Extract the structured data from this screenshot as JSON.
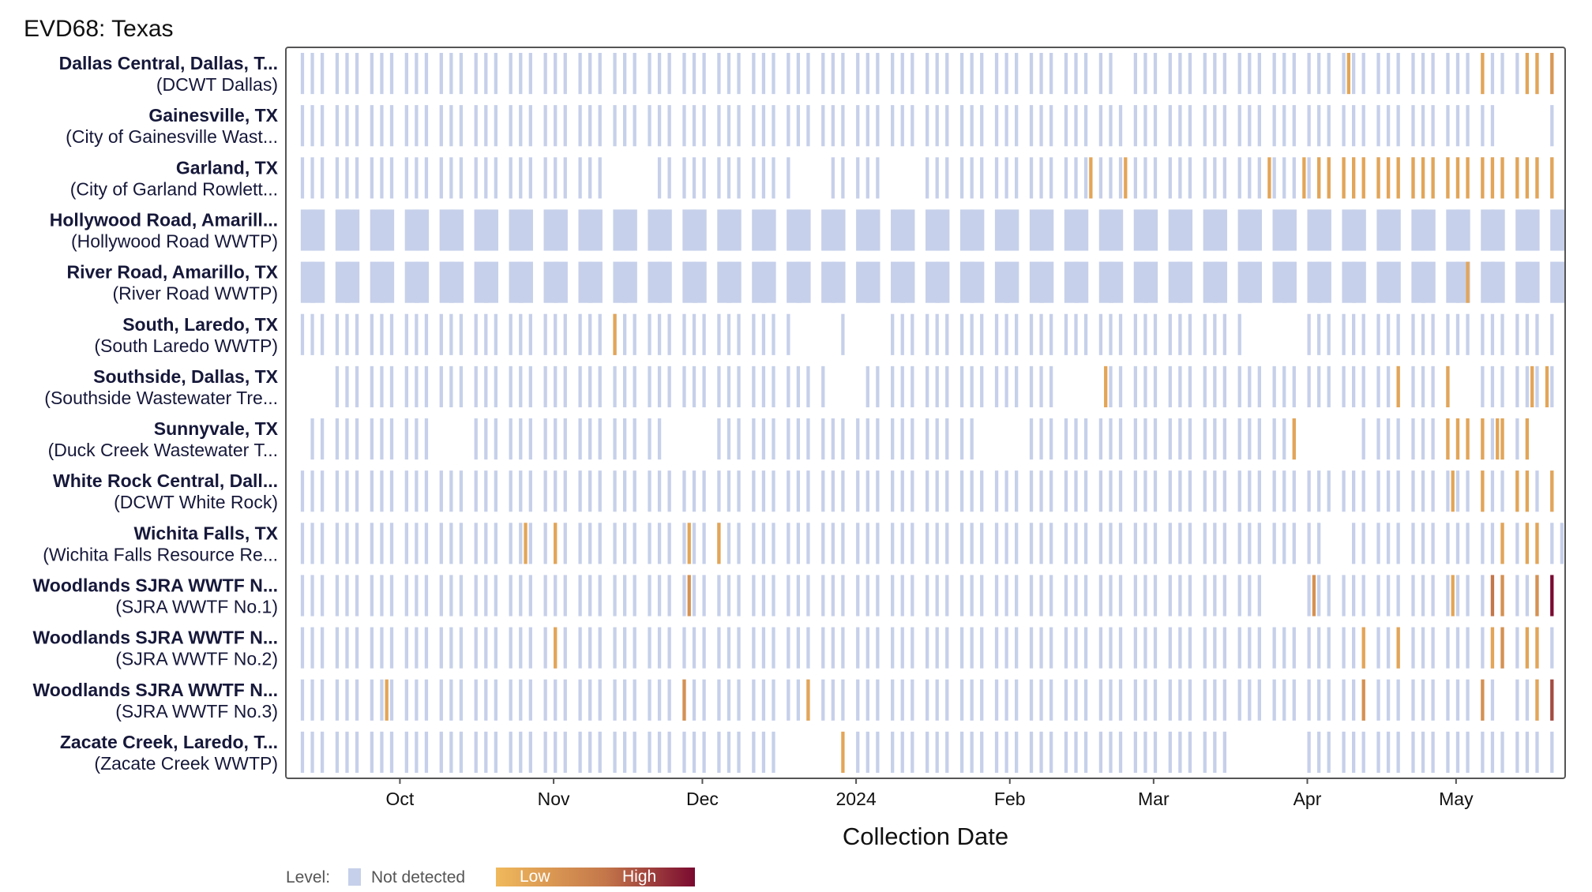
{
  "title": "EVD68: Texas",
  "chart_data": {
    "type": "heatmap",
    "title": "EVD68: Texas",
    "xlabel": "Collection Date",
    "ylabel": "",
    "x_range": [
      "2023-09-08",
      "2024-05-23"
    ],
    "x_ticks": [
      {
        "date": "2023-10-01",
        "label": "Oct"
      },
      {
        "date": "2023-11-01",
        "label": "Nov"
      },
      {
        "date": "2023-12-01",
        "label": "Dec"
      },
      {
        "date": "2024-01-01",
        "label": "2024"
      },
      {
        "date": "2024-02-01",
        "label": "Feb"
      },
      {
        "date": "2024-03-01",
        "label": "Mar"
      },
      {
        "date": "2024-04-01",
        "label": "Apr"
      },
      {
        "date": "2024-05-01",
        "label": "May"
      }
    ],
    "legend": {
      "label": "Level:",
      "not_detected": "Not detected",
      "low": "Low",
      "high": "High",
      "colors": {
        "not_detected": "#c6d0ea",
        "low": "#f0b95c",
        "mid": "#c4774a",
        "high": "#7a0a30"
      }
    },
    "sites": [
      {
        "name": "Dallas Central, Dallas, T...",
        "plant": "(DCWT Dallas)",
        "pattern": "dense",
        "start": "2023-09-10",
        "end": "2024-05-20",
        "gaps": [
          [
            "2024-02-22",
            "2024-02-24"
          ]
        ],
        "detections": [
          [
            "2024-04-09",
            0.15
          ],
          [
            "2024-05-06",
            0.15
          ],
          [
            "2024-05-15",
            0.15
          ],
          [
            "2024-05-17",
            0.15
          ],
          [
            "2024-05-20",
            0.25
          ]
        ]
      },
      {
        "name": "Gainesville, TX",
        "plant": "(City of Gainesville Wast...",
        "pattern": "dense",
        "start": "2023-09-10",
        "end": "2024-05-20",
        "gaps": [
          [
            "2024-05-09",
            "2024-05-19"
          ]
        ],
        "detections": []
      },
      {
        "name": "Garland, TX",
        "plant": "(City of Garland Rowlett...",
        "pattern": "dense",
        "start": "2023-09-10",
        "end": "2024-05-20",
        "gaps": [
          [
            "2023-11-11",
            "2023-11-20"
          ],
          [
            "2023-12-19",
            "2023-12-25"
          ],
          [
            "2024-01-06",
            "2024-01-12"
          ]
        ],
        "detections": [
          [
            "2024-02-17",
            0.15
          ],
          [
            "2024-02-24",
            0.15
          ],
          [
            "2024-03-24",
            0.15
          ],
          [
            "2024-03-31",
            0.15
          ],
          [
            "2024-04-03",
            0.15
          ],
          [
            "2024-04-05",
            0.15
          ],
          [
            "2024-04-08",
            0.15
          ],
          [
            "2024-04-10",
            0.15
          ],
          [
            "2024-04-12",
            0.15
          ],
          [
            "2024-04-15",
            0.15
          ],
          [
            "2024-04-17",
            0.15
          ],
          [
            "2024-04-19",
            0.15
          ],
          [
            "2024-04-22",
            0.15
          ],
          [
            "2024-04-24",
            0.15
          ],
          [
            "2024-04-26",
            0.15
          ],
          [
            "2024-04-29",
            0.15
          ],
          [
            "2024-05-01",
            0.15
          ],
          [
            "2024-05-03",
            0.15
          ],
          [
            "2024-05-06",
            0.15
          ],
          [
            "2024-05-08",
            0.15
          ],
          [
            "2024-05-10",
            0.15
          ],
          [
            "2024-05-13",
            0.15
          ],
          [
            "2024-05-15",
            0.15
          ],
          [
            "2024-05-17",
            0.15
          ],
          [
            "2024-05-20",
            0.15
          ]
        ]
      },
      {
        "name": "Hollywood Road, Amarill...",
        "plant": "(Hollywood Road WWTP)",
        "pattern": "weekly",
        "start": "2023-09-10",
        "end": "2024-05-20",
        "gaps": [],
        "detections": []
      },
      {
        "name": "River Road, Amarillo, TX",
        "plant": "(River Road WWTP)",
        "pattern": "weekly",
        "start": "2023-09-09",
        "end": "2024-05-20",
        "gaps": [],
        "detections": [
          [
            "2024-05-03",
            0.15
          ]
        ]
      },
      {
        "name": "South, Laredo, TX",
        "plant": "(South Laredo WWTP)",
        "pattern": "dense",
        "start": "2023-09-10",
        "end": "2024-05-20",
        "gaps": [
          [
            "2023-12-19",
            "2023-12-28"
          ],
          [
            "2023-12-31",
            "2024-01-06"
          ],
          [
            "2024-03-19",
            "2024-03-31"
          ]
        ],
        "detections": [
          [
            "2023-11-13",
            0.15
          ]
        ]
      },
      {
        "name": "Southside, Dallas, TX",
        "plant": "(Southside Wastewater Tre...",
        "pattern": "dense",
        "start": "2023-09-10",
        "end": "2024-05-20",
        "gaps": [
          [
            "2023-09-11",
            "2023-09-16"
          ],
          [
            "2023-12-27",
            "2024-01-01"
          ],
          [
            "2024-02-10",
            "2024-02-20"
          ],
          [
            "2024-04-30",
            "2024-05-05"
          ]
        ],
        "detections": [
          [
            "2024-02-20",
            0.15
          ],
          [
            "2024-04-19",
            0.15
          ],
          [
            "2024-04-29",
            0.15
          ],
          [
            "2024-05-16",
            0.15
          ],
          [
            "2024-05-19",
            0.15
          ]
        ]
      },
      {
        "name": "Sunnyvale, TX",
        "plant": "(Duck Creek Wastewater T...",
        "pattern": "dense",
        "start": "2023-09-12",
        "end": "2024-05-15",
        "gaps": [
          [
            "2023-10-07",
            "2023-10-14"
          ],
          [
            "2023-11-23",
            "2023-12-01"
          ],
          [
            "2024-01-26",
            "2024-02-03"
          ],
          [
            "2024-03-30",
            "2024-04-10"
          ]
        ],
        "detections": [
          [
            "2024-03-29",
            0.15
          ],
          [
            "2024-04-29",
            0.15
          ],
          [
            "2024-05-01",
            0.15
          ],
          [
            "2024-05-03",
            0.15
          ],
          [
            "2024-05-06",
            0.15
          ],
          [
            "2024-05-09",
            0.15
          ],
          [
            "2024-05-10",
            0.15
          ],
          [
            "2024-05-15",
            0.15
          ]
        ]
      },
      {
        "name": "White Rock Central, Dall...",
        "plant": "(DCWT White Rock)",
        "pattern": "dense",
        "start": "2023-09-10",
        "end": "2024-05-20",
        "gaps": [],
        "detections": [
          [
            "2024-04-30",
            0.15
          ],
          [
            "2024-05-06",
            0.15
          ],
          [
            "2024-05-13",
            0.15
          ],
          [
            "2024-05-15",
            0.15
          ],
          [
            "2024-05-20",
            0.15
          ]
        ]
      },
      {
        "name": "Wichita Falls, TX",
        "plant": "(Wichita Falls Resource Re...",
        "pattern": "dense",
        "start": "2023-09-10",
        "end": "2024-05-22",
        "gaps": [
          [
            "2024-04-04",
            "2024-04-09"
          ]
        ],
        "detections": [
          [
            "2023-10-26",
            0.15
          ],
          [
            "2023-11-01",
            0.15
          ],
          [
            "2023-11-28",
            0.15
          ],
          [
            "2023-12-04",
            0.15
          ],
          [
            "2024-05-10",
            0.15
          ],
          [
            "2024-05-15",
            0.15
          ],
          [
            "2024-05-17",
            0.15
          ]
        ]
      },
      {
        "name": "Woodlands SJRA WWTF N...",
        "plant": "(SJRA WWTF No.1)",
        "pattern": "dense",
        "start": "2023-09-10",
        "end": "2024-05-20",
        "gaps": [
          [
            "2024-03-24",
            "2024-03-31"
          ]
        ],
        "detections": [
          [
            "2023-11-28",
            0.3
          ],
          [
            "2024-04-02",
            0.3
          ],
          [
            "2024-04-30",
            0.15
          ],
          [
            "2024-05-08",
            0.5
          ],
          [
            "2024-05-10",
            0.3
          ],
          [
            "2024-05-17",
            0.3
          ],
          [
            "2024-05-20",
            1.0
          ]
        ]
      },
      {
        "name": "Woodlands SJRA WWTF N...",
        "plant": "(SJRA WWTF No.2)",
        "pattern": "dense",
        "start": "2023-09-10",
        "end": "2024-05-20",
        "gaps": [],
        "detections": [
          [
            "2023-11-01",
            0.15
          ],
          [
            "2024-04-12",
            0.15
          ],
          [
            "2024-04-19",
            0.15
          ],
          [
            "2024-05-08",
            0.15
          ],
          [
            "2024-05-10",
            0.3
          ],
          [
            "2024-05-15",
            0.15
          ],
          [
            "2024-05-17",
            0.15
          ]
        ]
      },
      {
        "name": "Woodlands SJRA WWTF N...",
        "plant": "(SJRA WWTF No.3)",
        "pattern": "dense",
        "start": "2023-09-10",
        "end": "2024-05-20",
        "gaps": [
          [
            "2024-05-09",
            "2024-05-12"
          ]
        ],
        "detections": [
          [
            "2023-09-28",
            0.15
          ],
          [
            "2023-11-27",
            0.3
          ],
          [
            "2023-12-22",
            0.15
          ],
          [
            "2024-04-12",
            0.3
          ],
          [
            "2024-05-06",
            0.3
          ],
          [
            "2024-05-17",
            0.15
          ],
          [
            "2024-05-20",
            0.7
          ]
        ]
      },
      {
        "name": "Zacate Creek, Laredo, T...",
        "plant": "(Zacate Creek WWTP)",
        "pattern": "dense",
        "start": "2023-09-10",
        "end": "2024-05-20",
        "gaps": [
          [
            "2023-12-18",
            "2023-12-29"
          ],
          [
            "2024-03-18",
            "2024-03-31"
          ]
        ],
        "detections": [
          [
            "2023-12-29",
            0.15
          ]
        ]
      }
    ]
  }
}
